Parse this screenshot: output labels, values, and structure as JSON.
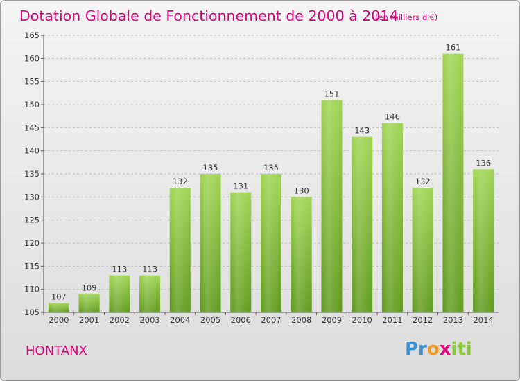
{
  "chart_data": {
    "type": "bar",
    "title": "Dotation Globale de Fonctionnement de 2000 à 2014",
    "subtitle": "(en milliers d'€)",
    "categories": [
      "2000",
      "2001",
      "2002",
      "2003",
      "2004",
      "2005",
      "2006",
      "2007",
      "2008",
      "2009",
      "2010",
      "2011",
      "2012",
      "2013",
      "2014"
    ],
    "values": [
      107,
      109,
      113,
      113,
      132,
      135,
      131,
      135,
      130,
      151,
      143,
      146,
      132,
      161,
      136
    ],
    "data_labels": [
      "107",
      "109",
      "113",
      "113",
      "132",
      "135",
      "131",
      "135",
      "130",
      "151",
      "143",
      "146",
      "132",
      "161",
      "136"
    ],
    "ylim": [
      105,
      165
    ],
    "yticks": [
      "105",
      "110",
      "115",
      "120",
      "125",
      "130",
      "135",
      "140",
      "145",
      "150",
      "155",
      "160",
      "165"
    ],
    "grid": "horizontal-dashed",
    "xlabel": "",
    "ylabel": "",
    "bar_color": "#8cc63f",
    "bar_color_dark": "#5e9a1c"
  },
  "commune": "HONTANX",
  "logo": {
    "part1": "Pr",
    "part2": "o",
    "part3": "x",
    "part4": "iti"
  },
  "colors": {
    "title": "#e3007c",
    "text": "#333333",
    "grid": "#bbbbbb"
  }
}
